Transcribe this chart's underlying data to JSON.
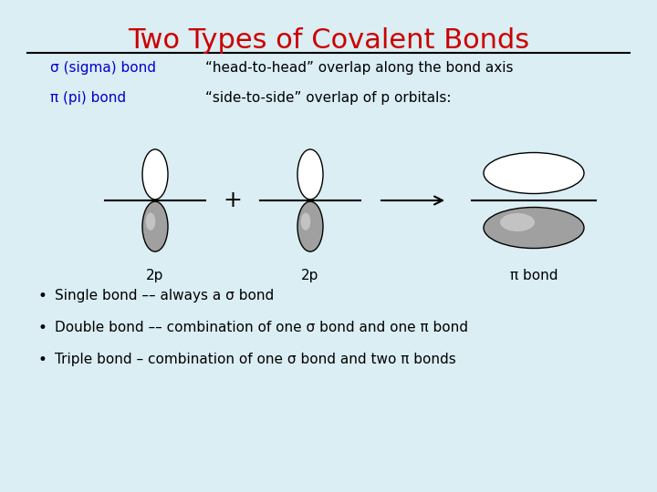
{
  "title": "Two Types of Covalent Bonds",
  "title_color": "#cc0000",
  "title_fontsize": 22,
  "background_color": "#daeef3",
  "sigma_label": "σ (sigma) bond",
  "sigma_desc": "“head-to-head” overlap along the bond axis",
  "pi_label": "π (pi) bond",
  "pi_desc": "“side-to-side” overlap of p orbitals:",
  "greek_color": "#0000cc",
  "text_color": "#000000",
  "bullet1": "Single bond –– always a σ bond",
  "bullet2": "Double bond –– combination of one σ bond and one π bond",
  "bullet3": "Triple bond – combination of one σ bond and two π bonds",
  "label_2p": "2p",
  "label_pi_bond": "π bond"
}
